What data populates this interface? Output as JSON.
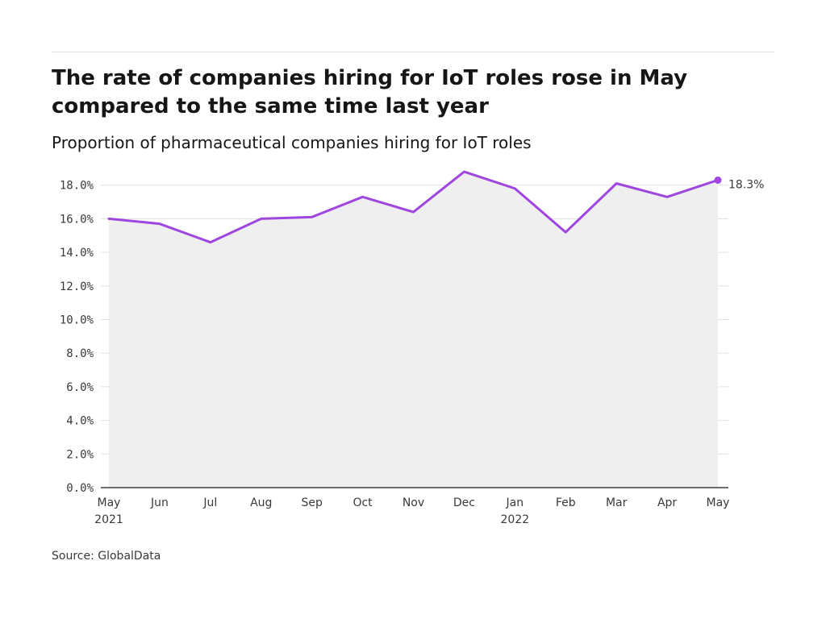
{
  "title": "The rate of companies hiring for IoT roles rose in May compared to the same time last year",
  "subtitle": "Proportion of pharmaceutical companies hiring for IoT roles",
  "source": "Source: GlobalData",
  "colors": {
    "line": "#a046e0",
    "area": "#efefef",
    "grid": "#e0e0e0",
    "axis": "#161616"
  },
  "chart_data": {
    "type": "area",
    "title": "The rate of companies hiring for IoT roles rose in May compared to the same time last year",
    "subtitle": "Proportion of pharmaceutical companies hiring for IoT roles",
    "xlabel": "",
    "ylabel": "",
    "ylim": [
      0,
      18
    ],
    "yticks": [
      0,
      2,
      4,
      6,
      8,
      10,
      12,
      14,
      16,
      18
    ],
    "ytick_labels": [
      "0.0%",
      "2.0%",
      "4.0%",
      "6.0%",
      "8.0%",
      "10.0%",
      "12.0%",
      "14.0%",
      "16.0%",
      "18.0%"
    ],
    "categories": [
      "May 2021",
      "Jun",
      "Jul",
      "Aug",
      "Sep",
      "Oct",
      "Nov",
      "Dec",
      "Jan 2022",
      "Feb",
      "Mar",
      "Apr",
      "May"
    ],
    "xtick_labels": [
      [
        "May",
        "2021"
      ],
      [
        "Jun"
      ],
      [
        "Jul"
      ],
      [
        "Aug"
      ],
      [
        "Sep"
      ],
      [
        "Oct"
      ],
      [
        "Nov"
      ],
      [
        "Dec"
      ],
      [
        "Jan",
        "2022"
      ],
      [
        "Feb"
      ],
      [
        "Mar"
      ],
      [
        "Apr"
      ],
      [
        "May"
      ]
    ],
    "series": [
      {
        "values": [
          16.0,
          15.7,
          14.6,
          16.0,
          16.1,
          17.3,
          16.4,
          18.8,
          17.8,
          15.2,
          18.1,
          17.3,
          18.3
        ]
      }
    ],
    "end_label": "18.3%",
    "grid": true,
    "legend": "none"
  }
}
